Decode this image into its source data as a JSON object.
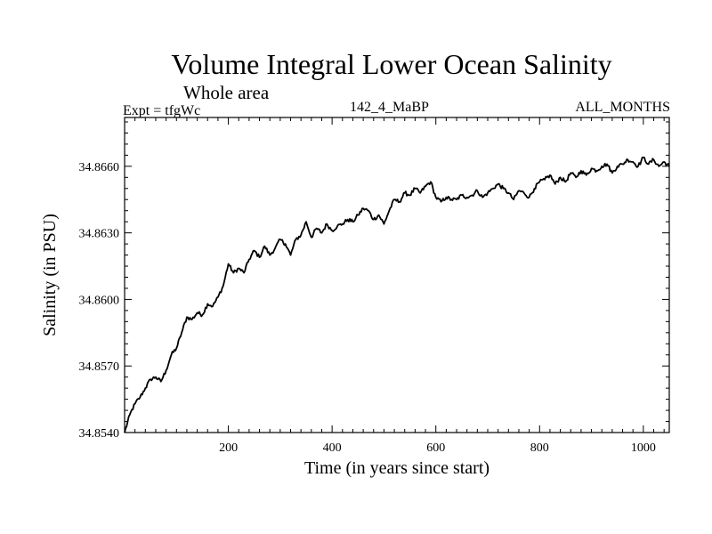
{
  "chart_data": {
    "type": "line",
    "title": "Volume Integral Lower Ocean Salinity",
    "subtitle": "Whole area",
    "experiment_label": "Expt = tfgWc",
    "run_label": "142_4_MaBP",
    "period_label": "ALL_MONTHS",
    "xlabel": "Time (in years since start)",
    "ylabel": "Salinity (in PSU)",
    "xlim": [
      0,
      1050
    ],
    "ylim": [
      34.854,
      34.8682
    ],
    "x_ticks": [
      200,
      400,
      600,
      800,
      1000
    ],
    "x_tick_labels": [
      "200",
      "400",
      "600",
      "800",
      "1000"
    ],
    "y_ticks": [
      34.854,
      34.857,
      34.86,
      34.863,
      34.866
    ],
    "y_tick_labels": [
      "34.8540",
      "34.8570",
      "34.8600",
      "34.8630",
      "34.8660"
    ],
    "grid": false,
    "series": [
      {
        "name": "salinity",
        "color": "#000000",
        "x": [
          0,
          10,
          20,
          30,
          40,
          50,
          60,
          70,
          80,
          90,
          100,
          110,
          120,
          130,
          140,
          150,
          160,
          170,
          180,
          190,
          200,
          210,
          220,
          230,
          240,
          250,
          260,
          270,
          280,
          290,
          300,
          310,
          320,
          330,
          340,
          350,
          360,
          370,
          380,
          390,
          400,
          410,
          420,
          430,
          440,
          450,
          460,
          470,
          480,
          490,
          500,
          510,
          520,
          530,
          540,
          550,
          560,
          570,
          580,
          590,
          600,
          610,
          620,
          630,
          640,
          650,
          660,
          670,
          680,
          690,
          700,
          710,
          720,
          730,
          740,
          750,
          760,
          770,
          780,
          790,
          800,
          810,
          820,
          830,
          840,
          850,
          860,
          870,
          880,
          890,
          900,
          910,
          920,
          930,
          940,
          950,
          960,
          970,
          980,
          990,
          1000,
          1010,
          1020,
          1030,
          1040,
          1050
        ],
        "values": [
          34.854,
          34.8548,
          34.8553,
          34.8556,
          34.856,
          34.8564,
          34.8565,
          34.8563,
          34.8568,
          34.8575,
          34.8578,
          34.8585,
          34.8592,
          34.8591,
          34.8594,
          34.8593,
          34.8598,
          34.8597,
          34.8601,
          34.8606,
          34.8616,
          34.8612,
          34.8614,
          34.8612,
          34.8618,
          34.8622,
          34.8619,
          34.8624,
          34.862,
          34.8623,
          34.8627,
          34.8625,
          34.862,
          34.8627,
          34.8629,
          34.8635,
          34.8628,
          34.8632,
          34.863,
          34.8634,
          34.8631,
          34.8633,
          34.8634,
          34.8636,
          34.8635,
          34.8638,
          34.8641,
          34.864,
          34.8636,
          34.8638,
          34.8634,
          34.864,
          34.8645,
          34.8644,
          34.8648,
          34.8647,
          34.865,
          34.8648,
          34.8651,
          34.8653,
          34.8646,
          34.8644,
          34.8646,
          34.8645,
          34.8645,
          34.8647,
          34.8646,
          34.8647,
          34.8649,
          34.8646,
          34.8648,
          34.865,
          34.8652,
          34.865,
          34.8648,
          34.8645,
          34.8649,
          34.8648,
          34.8646,
          34.865,
          34.8653,
          34.8654,
          34.8656,
          34.8652,
          34.8655,
          34.8653,
          34.8657,
          34.8655,
          34.8658,
          34.8656,
          34.8659,
          34.8658,
          34.866,
          34.8661,
          34.8657,
          34.866,
          34.8661,
          34.8663,
          34.8662,
          34.866,
          34.8664,
          34.8661,
          34.8663,
          34.866,
          34.8662,
          34.866
        ]
      }
    ]
  }
}
